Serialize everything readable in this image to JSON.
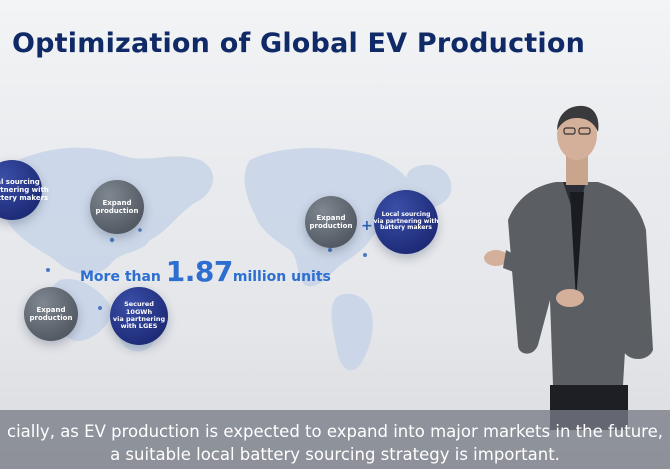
{
  "slide": {
    "title": "Optimization of Global EV Production",
    "units": {
      "prefix": "More than ",
      "number": "1.87",
      "suffix": "million units"
    },
    "circles": [
      {
        "id": "local-left",
        "text": "al sourcing\npartnering with\nbattery makers",
        "style": "navy"
      },
      {
        "id": "expand-asia",
        "text": "Expand\nproduction",
        "style": "gray"
      },
      {
        "id": "expand-na",
        "text": "Expand\nproduction",
        "style": "gray"
      },
      {
        "id": "local-na",
        "text": "Local sourcing\nvia partnering with\nbattery makers",
        "style": "navy"
      },
      {
        "id": "expand-sea",
        "text": "Expand\nproduction",
        "style": "gray"
      },
      {
        "id": "secured-lges",
        "text": "Secured\n10GWh\nvia partnering\nwith LGES",
        "style": "navy"
      }
    ],
    "plus": "+"
  },
  "subtitles": {
    "line1": "cially, as EV production is expected to expand into major markets in the future,",
    "line2": "a suitable local battery sourcing strategy is important."
  },
  "colors": {
    "title": "#0f2a66",
    "accent": "#2d6fd0",
    "navy_circle": "#1f2d7a",
    "gray_circle": "#555c66"
  }
}
